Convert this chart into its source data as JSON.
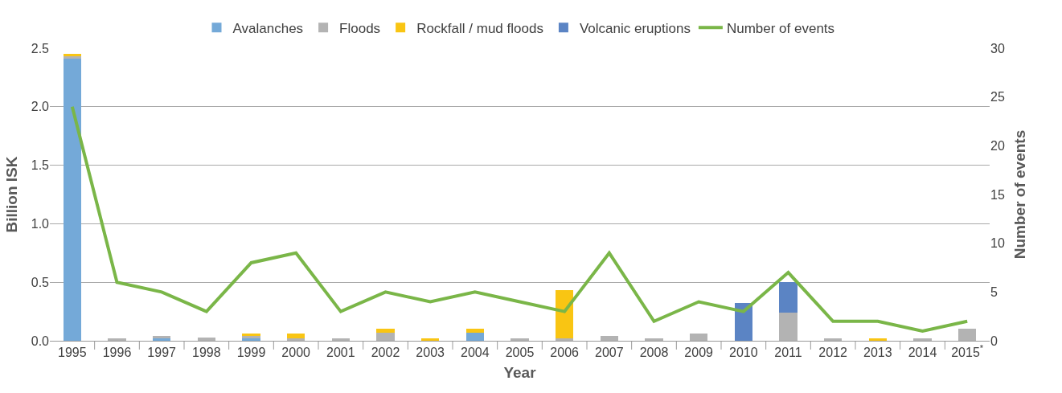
{
  "chart_data": {
    "type": "bar",
    "stacked": true,
    "xlabel": "Year",
    "ylabel": "Billion ISK",
    "y2label": "Number of events",
    "categories": [
      "1995",
      "1996",
      "1997",
      "1998",
      "1999",
      "2000",
      "2001",
      "2002",
      "2003",
      "2004",
      "2005",
      "2006",
      "2007",
      "2008",
      "2009",
      "2010",
      "2011",
      "2012",
      "2013",
      "2014",
      "2015$^{*}$"
    ],
    "series": [
      {
        "name": "Avalanches",
        "color": "#74a9d8",
        "values": [
          2.41,
          0,
          0.02,
          0,
          0.02,
          0,
          0,
          0,
          0,
          0.07,
          0,
          0,
          0,
          0,
          0,
          0,
          0,
          0,
          0,
          0,
          0
        ]
      },
      {
        "name": "Floods",
        "color": "#b3b3b3",
        "values": [
          0.02,
          0.02,
          0.02,
          0.03,
          0.02,
          0.02,
          0.02,
          0.07,
          0,
          0,
          0.02,
          0.02,
          0.04,
          0.02,
          0.06,
          0,
          0.24,
          0.02,
          0,
          0.02,
          0.1
        ]
      },
      {
        "name": "Rockfall / mud floods",
        "color": "#f9c513",
        "values": [
          0.02,
          0,
          0,
          0,
          0.02,
          0.04,
          0,
          0.03,
          0.02,
          0.03,
          0,
          0.41,
          0,
          0,
          0,
          0,
          0,
          0,
          0.02,
          0,
          0
        ]
      },
      {
        "name": "Volcanic eruptions",
        "color": "#5b84c4",
        "values": [
          0,
          0,
          0,
          0,
          0,
          0,
          0,
          0,
          0,
          0,
          0,
          0,
          0,
          0,
          0,
          0.32,
          0.26,
          0,
          0,
          0,
          0
        ]
      },
      {
        "name": "Number of events",
        "type": "line",
        "axis": "y2",
        "color": "#7ab648",
        "values": [
          24,
          6,
          5,
          3,
          8,
          9,
          3,
          5,
          4,
          5,
          4,
          3,
          9,
          2,
          4,
          3,
          7,
          2,
          2,
          1,
          2
        ]
      }
    ],
    "ylim": [
      0,
      2.5
    ],
    "yticks": [
      {
        "value": 0,
        "label": "0.0"
      },
      {
        "value": 0.5,
        "label": "0.5"
      },
      {
        "value": 1,
        "label": "1.0"
      },
      {
        "value": 1.5,
        "label": "1.5"
      },
      {
        "value": 2,
        "label": "2.0"
      },
      {
        "value": 2.5,
        "label": "2.5"
      }
    ],
    "y2lim": [
      0,
      30
    ],
    "y2ticks": [
      0,
      5,
      10,
      15,
      20,
      25,
      30
    ],
    "grid": "y",
    "legend": "top",
    "marker": "none"
  }
}
